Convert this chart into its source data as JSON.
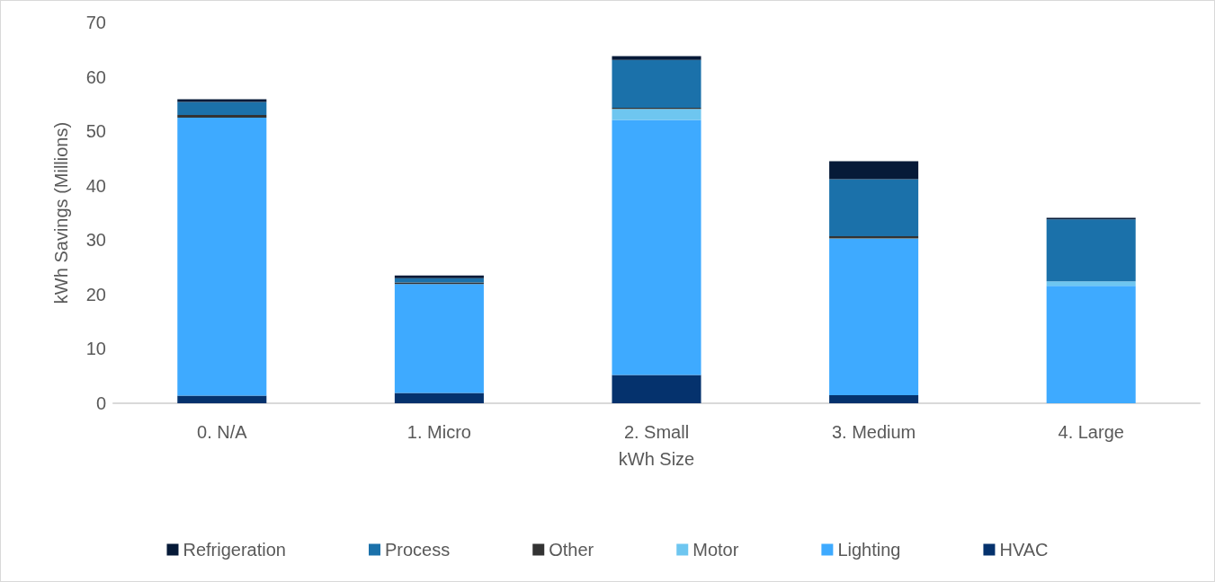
{
  "chart_data": {
    "type": "bar",
    "stacked": true,
    "xlabel": "kWh Size",
    "ylabel": "kWh Savings (Millions)",
    "categories": [
      "0. N/A",
      "1. Micro",
      "2. Small",
      "3. Medium",
      "4. Large"
    ],
    "series": [
      {
        "name": "HVAC",
        "color": "#05326d",
        "values": [
          1.4,
          1.9,
          5.2,
          1.5,
          0
        ]
      },
      {
        "name": "Lighting",
        "color": "#3eaaff",
        "values": [
          51.1,
          20.0,
          46.9,
          28.7,
          21.6
        ]
      },
      {
        "name": "Motor",
        "color": "#6ec6f0",
        "values": [
          null,
          null,
          2.0,
          0.1,
          0.8
        ]
      },
      {
        "name": "Other",
        "color": "#333333",
        "values": [
          0.5,
          0.3,
          0.2,
          0.4,
          0
        ]
      },
      {
        "name": "Process",
        "color": "#1b71aa",
        "values": [
          2.4,
          0.8,
          8.8,
          10.5,
          11.4
        ]
      },
      {
        "name": "Refrigeration",
        "color": "#061a38",
        "values": [
          0.5,
          0.5,
          0.7,
          3.3,
          0.3
        ]
      }
    ],
    "ylim": [
      0,
      70
    ],
    "yticks": [
      0,
      10,
      20,
      30,
      40,
      50,
      60,
      70
    ],
    "grid": false,
    "legend": "bottom"
  }
}
